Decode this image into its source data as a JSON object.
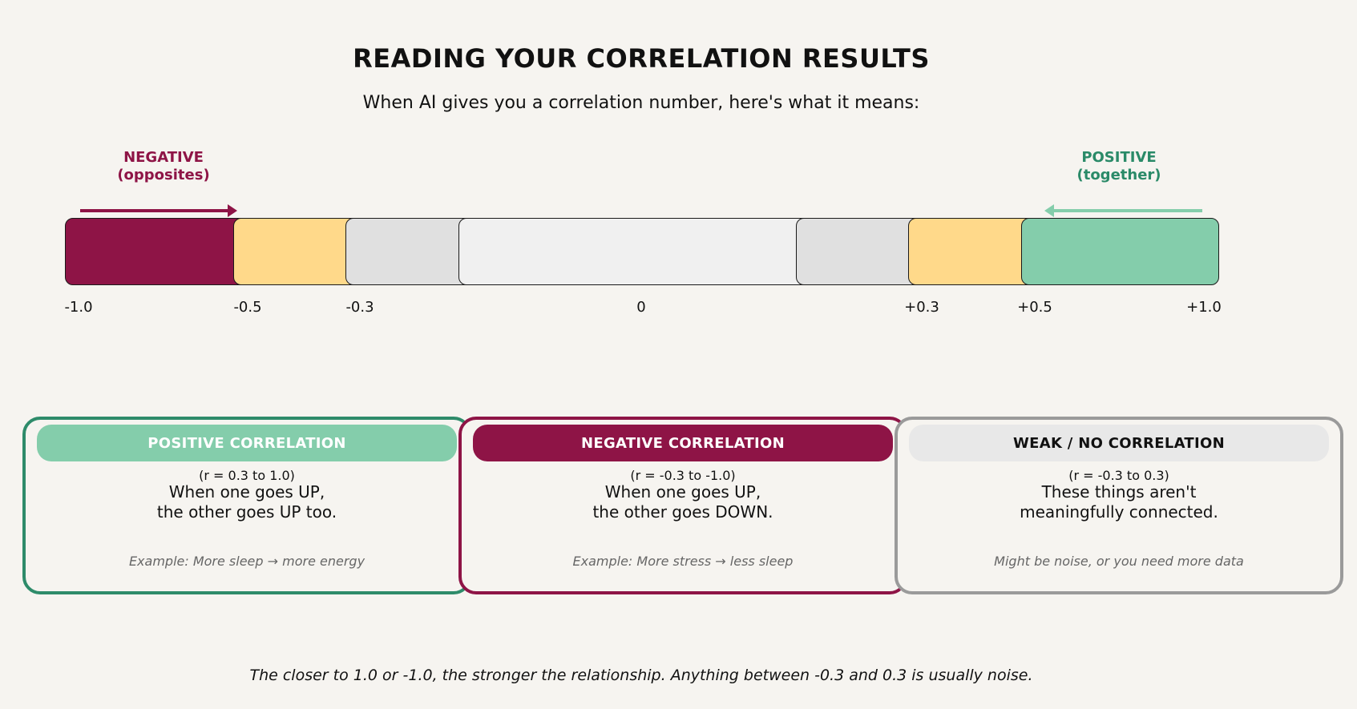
{
  "title": "READING YOUR CORRELATION RESULTS",
  "subtitle": "When AI gives you a correlation number, here's what it means:",
  "negative_label": {
    "line1": "NEGATIVE",
    "line2": "(opposites)"
  },
  "positive_label": {
    "line1": "POSITIVE",
    "line2": "(together)"
  },
  "colors": {
    "negative": "#8e1446",
    "positive": "#84cdab",
    "positive_border": "#2e8b6a",
    "moderate": "#ffd98a",
    "weak": "#e0e0e0",
    "none": "#f0f0f0",
    "background": "#f6f4f0"
  },
  "scale": {
    "segments": [
      {
        "from": -1.0,
        "to": -0.5,
        "color": "#8e1446"
      },
      {
        "from": -0.5,
        "to": -0.3,
        "color": "#ffd98a"
      },
      {
        "from": -0.3,
        "to": -0.1,
        "color": "#e0e0e0"
      },
      {
        "from": -0.1,
        "to": 0.1,
        "color": "#f0f0f0"
      },
      {
        "from": 0.1,
        "to": 0.3,
        "color": "#e0e0e0"
      },
      {
        "from": 0.3,
        "to": 0.5,
        "color": "#ffd98a"
      },
      {
        "from": 0.5,
        "to": 1.0,
        "color": "#84cdab"
      }
    ],
    "ticks": [
      "-1.0",
      "-0.5",
      "-0.3",
      "0",
      "+0.3",
      "+0.5",
      "+1.0"
    ]
  },
  "cards": [
    {
      "heading": "POSITIVE CORRELATION",
      "range": "(r = 0.3 to 1.0)",
      "desc_line1": "When one goes UP,",
      "desc_line2": "the other goes UP too.",
      "example": "Example: More sleep → more energy"
    },
    {
      "heading": "NEGATIVE CORRELATION",
      "range": "(r = -0.3 to -1.0)",
      "desc_line1": "When one goes UP,",
      "desc_line2": "the other goes DOWN.",
      "example": "Example: More stress → less sleep"
    },
    {
      "heading": "WEAK / NO CORRELATION",
      "range": "(r = -0.3 to 0.3)",
      "desc_line1": "These things aren't",
      "desc_line2": "meaningfully connected.",
      "example": "Might be noise, or you need more data"
    }
  ],
  "footer": "The closer to 1.0 or -1.0, the stronger the relationship. Anything between -0.3 and 0.3 is usually noise."
}
